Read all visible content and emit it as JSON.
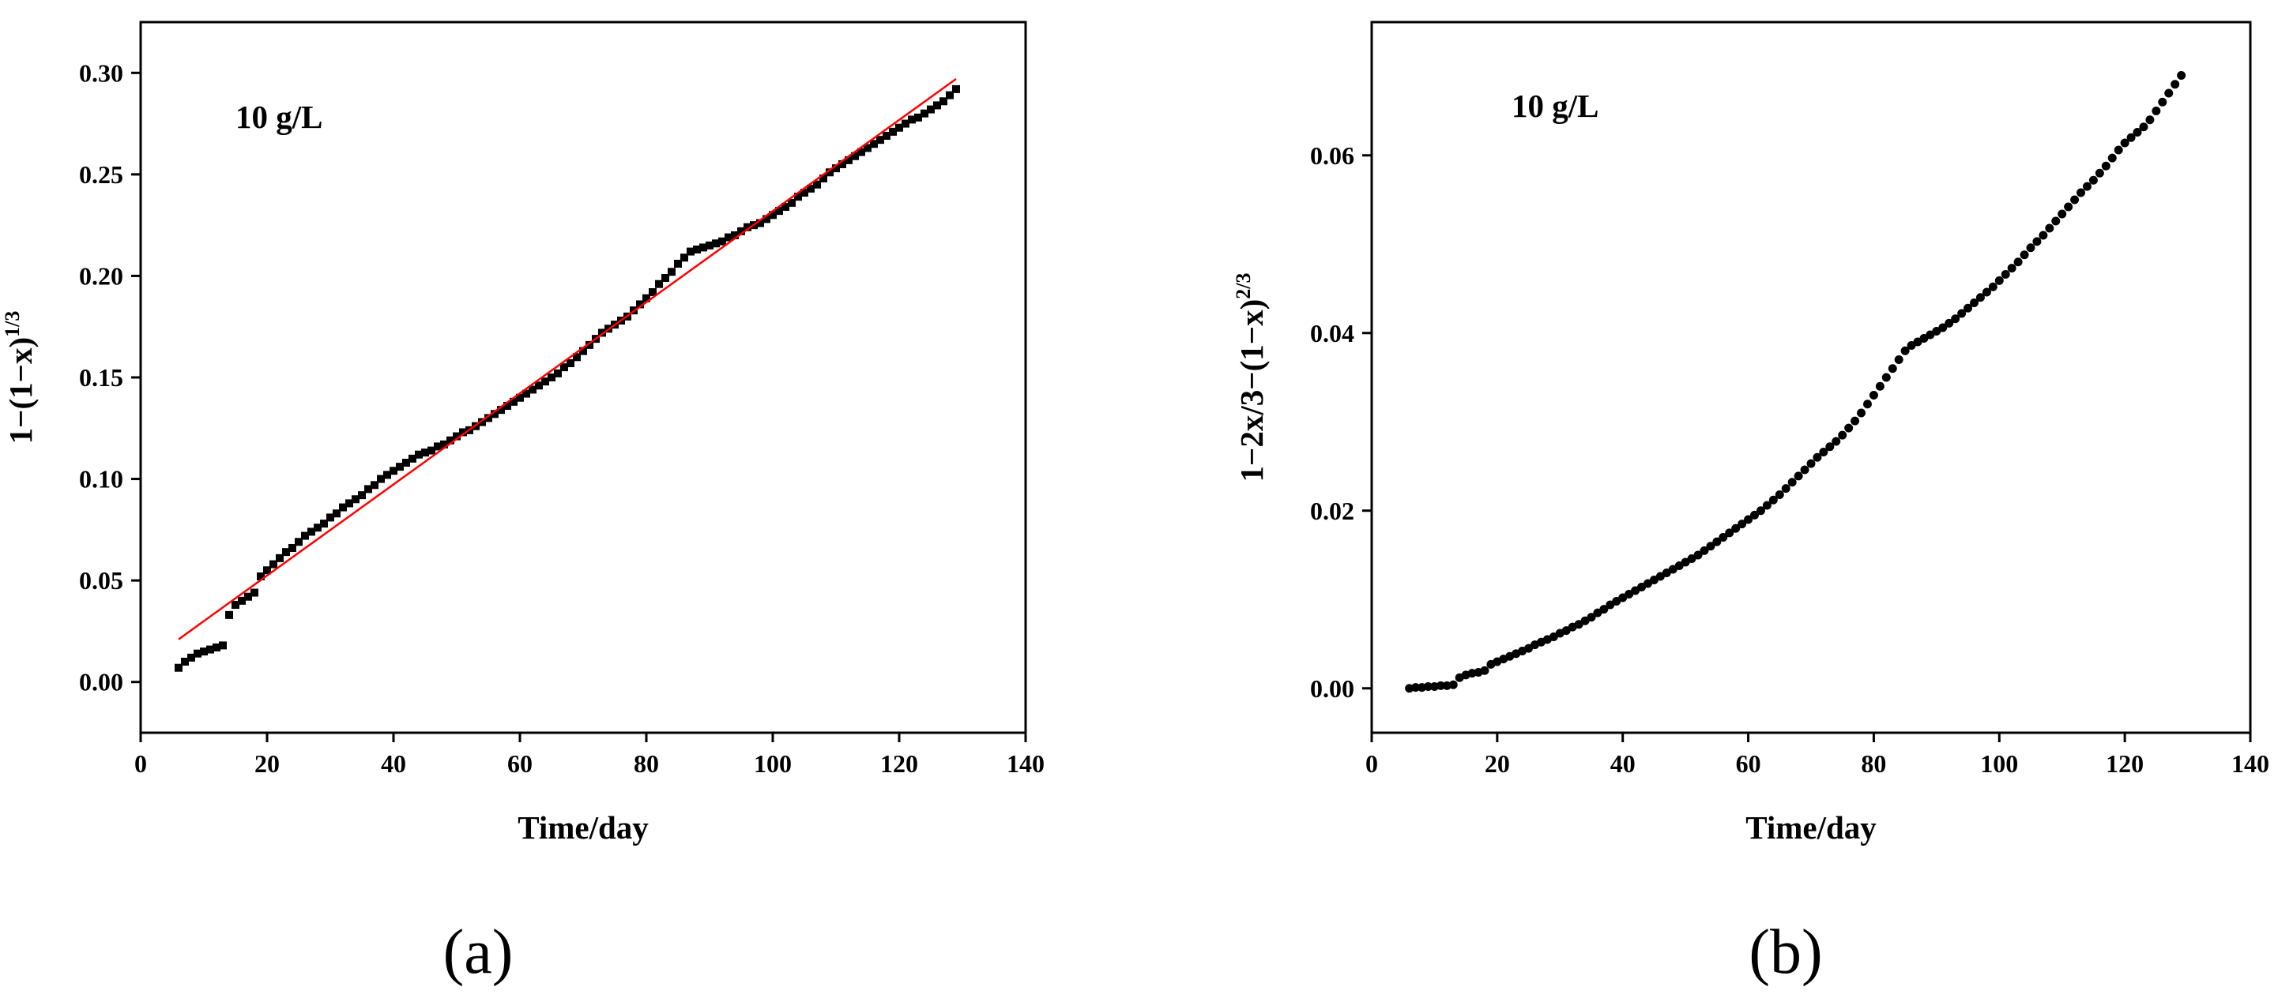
{
  "chart_data": [
    {
      "type": "scatter",
      "panel_label": "(a)",
      "annotation": "10 g/L",
      "xlabel": "Time/day",
      "ylabel": {
        "base": "1−(1−x)",
        "sup": "1/3"
      },
      "xlim": [
        0,
        140
      ],
      "ylim": [
        -0.025,
        0.325
      ],
      "xticks": [
        "0",
        "20",
        "40",
        "60",
        "80",
        "100",
        "120",
        "140"
      ],
      "yticks": [
        "0.00",
        "0.05",
        "0.10",
        "0.15",
        "0.20",
        "0.25",
        "0.30"
      ],
      "marker": "square",
      "marker_color": "#000000",
      "fit_line": {
        "x": [
          6,
          129
        ],
        "y": [
          0.021,
          0.297
        ],
        "color": "#ff0000"
      },
      "x": [
        6,
        7,
        8,
        9,
        10,
        11,
        12,
        13,
        14,
        15,
        16,
        17,
        18,
        19,
        20,
        21,
        22,
        23,
        24,
        25,
        26,
        27,
        28,
        29,
        30,
        31,
        32,
        33,
        34,
        35,
        36,
        37,
        38,
        39,
        40,
        41,
        42,
        43,
        44,
        45,
        46,
        47,
        48,
        49,
        50,
        51,
        52,
        53,
        54,
        55,
        56,
        57,
        58,
        59,
        60,
        61,
        62,
        63,
        64,
        65,
        66,
        67,
        68,
        69,
        70,
        71,
        72,
        73,
        74,
        75,
        76,
        77,
        78,
        79,
        80,
        81,
        82,
        83,
        84,
        85,
        86,
        87,
        88,
        89,
        90,
        91,
        92,
        93,
        94,
        95,
        96,
        97,
        98,
        99,
        100,
        101,
        102,
        103,
        104,
        105,
        106,
        107,
        108,
        109,
        110,
        111,
        112,
        113,
        114,
        115,
        116,
        117,
        118,
        119,
        120,
        121,
        122,
        123,
        124,
        125,
        126,
        127,
        128,
        129
      ],
      "y": [
        0.007,
        0.01,
        0.012,
        0.014,
        0.015,
        0.016,
        0.017,
        0.018,
        0.033,
        0.038,
        0.04,
        0.042,
        0.044,
        0.052,
        0.055,
        0.058,
        0.061,
        0.064,
        0.066,
        0.069,
        0.072,
        0.074,
        0.076,
        0.078,
        0.081,
        0.083,
        0.086,
        0.088,
        0.09,
        0.092,
        0.095,
        0.097,
        0.1,
        0.102,
        0.104,
        0.106,
        0.108,
        0.11,
        0.112,
        0.113,
        0.114,
        0.116,
        0.117,
        0.119,
        0.121,
        0.123,
        0.124,
        0.126,
        0.128,
        0.13,
        0.132,
        0.134,
        0.136,
        0.138,
        0.14,
        0.142,
        0.144,
        0.146,
        0.148,
        0.15,
        0.152,
        0.155,
        0.157,
        0.16,
        0.163,
        0.166,
        0.169,
        0.172,
        0.174,
        0.176,
        0.178,
        0.18,
        0.183,
        0.186,
        0.189,
        0.192,
        0.196,
        0.199,
        0.202,
        0.206,
        0.209,
        0.212,
        0.213,
        0.214,
        0.215,
        0.216,
        0.217,
        0.219,
        0.22,
        0.222,
        0.224,
        0.225,
        0.226,
        0.228,
        0.23,
        0.232,
        0.234,
        0.236,
        0.239,
        0.241,
        0.243,
        0.245,
        0.248,
        0.251,
        0.253,
        0.255,
        0.257,
        0.259,
        0.261,
        0.263,
        0.265,
        0.267,
        0.269,
        0.271,
        0.273,
        0.275,
        0.277,
        0.278,
        0.28,
        0.282,
        0.284,
        0.286,
        0.289,
        0.292
      ]
    },
    {
      "type": "scatter",
      "panel_label": "(b)",
      "annotation": "10 g/L",
      "xlabel": "Time/day",
      "ylabel": {
        "base": "1−2x/3−(1−x)",
        "sup": "2/3"
      },
      "xlim": [
        0,
        140
      ],
      "ylim": [
        -0.005,
        0.075
      ],
      "xticks": [
        "0",
        "20",
        "40",
        "60",
        "80",
        "100",
        "120",
        "140"
      ],
      "yticks": [
        "0.00",
        "0.02",
        "0.04",
        "0.06"
      ],
      "marker": "circle",
      "marker_color": "#000000",
      "x": [
        6,
        7,
        8,
        9,
        10,
        11,
        12,
        13,
        14,
        15,
        16,
        17,
        18,
        19,
        20,
        21,
        22,
        23,
        24,
        25,
        26,
        27,
        28,
        29,
        30,
        31,
        32,
        33,
        34,
        35,
        36,
        37,
        38,
        39,
        40,
        41,
        42,
        43,
        44,
        45,
        46,
        47,
        48,
        49,
        50,
        51,
        52,
        53,
        54,
        55,
        56,
        57,
        58,
        59,
        60,
        61,
        62,
        63,
        64,
        65,
        66,
        67,
        68,
        69,
        70,
        71,
        72,
        73,
        74,
        75,
        76,
        77,
        78,
        79,
        80,
        81,
        82,
        83,
        84,
        85,
        86,
        87,
        88,
        89,
        90,
        91,
        92,
        93,
        94,
        95,
        96,
        97,
        98,
        99,
        100,
        101,
        102,
        103,
        104,
        105,
        106,
        107,
        108,
        109,
        110,
        111,
        112,
        113,
        114,
        115,
        116,
        117,
        118,
        119,
        120,
        121,
        122,
        123,
        124,
        125,
        126,
        127,
        128,
        129
      ],
      "y": [
        0.0,
        0.0001,
        0.0001,
        0.0002,
        0.0002,
        0.0003,
        0.0003,
        0.0004,
        0.0012,
        0.0015,
        0.0017,
        0.0018,
        0.002,
        0.0027,
        0.003,
        0.0033,
        0.0036,
        0.0039,
        0.0042,
        0.0045,
        0.0049,
        0.0052,
        0.0055,
        0.0058,
        0.0062,
        0.0065,
        0.0069,
        0.0072,
        0.0076,
        0.008,
        0.0085,
        0.0089,
        0.0094,
        0.0098,
        0.0102,
        0.0106,
        0.011,
        0.0114,
        0.0118,
        0.0122,
        0.0126,
        0.013,
        0.0134,
        0.0138,
        0.0142,
        0.0146,
        0.015,
        0.0155,
        0.016,
        0.0165,
        0.017,
        0.0175,
        0.018,
        0.0185,
        0.019,
        0.0195,
        0.02,
        0.0206,
        0.0212,
        0.0218,
        0.0225,
        0.0232,
        0.0239,
        0.0246,
        0.0253,
        0.026,
        0.0266,
        0.0272,
        0.0278,
        0.0285,
        0.0293,
        0.0301,
        0.031,
        0.032,
        0.033,
        0.034,
        0.035,
        0.036,
        0.037,
        0.038,
        0.0386,
        0.039,
        0.0394,
        0.0398,
        0.0402,
        0.0406,
        0.0411,
        0.0416,
        0.0422,
        0.0428,
        0.0434,
        0.044,
        0.0446,
        0.0452,
        0.0459,
        0.0466,
        0.0473,
        0.048,
        0.0488,
        0.0496,
        0.0503,
        0.051,
        0.0518,
        0.0526,
        0.0534,
        0.0542,
        0.055,
        0.0558,
        0.0565,
        0.0572,
        0.058,
        0.0588,
        0.0597,
        0.0606,
        0.0614,
        0.062,
        0.0626,
        0.0632,
        0.064,
        0.065,
        0.066,
        0.067,
        0.068,
        0.069
      ]
    }
  ]
}
